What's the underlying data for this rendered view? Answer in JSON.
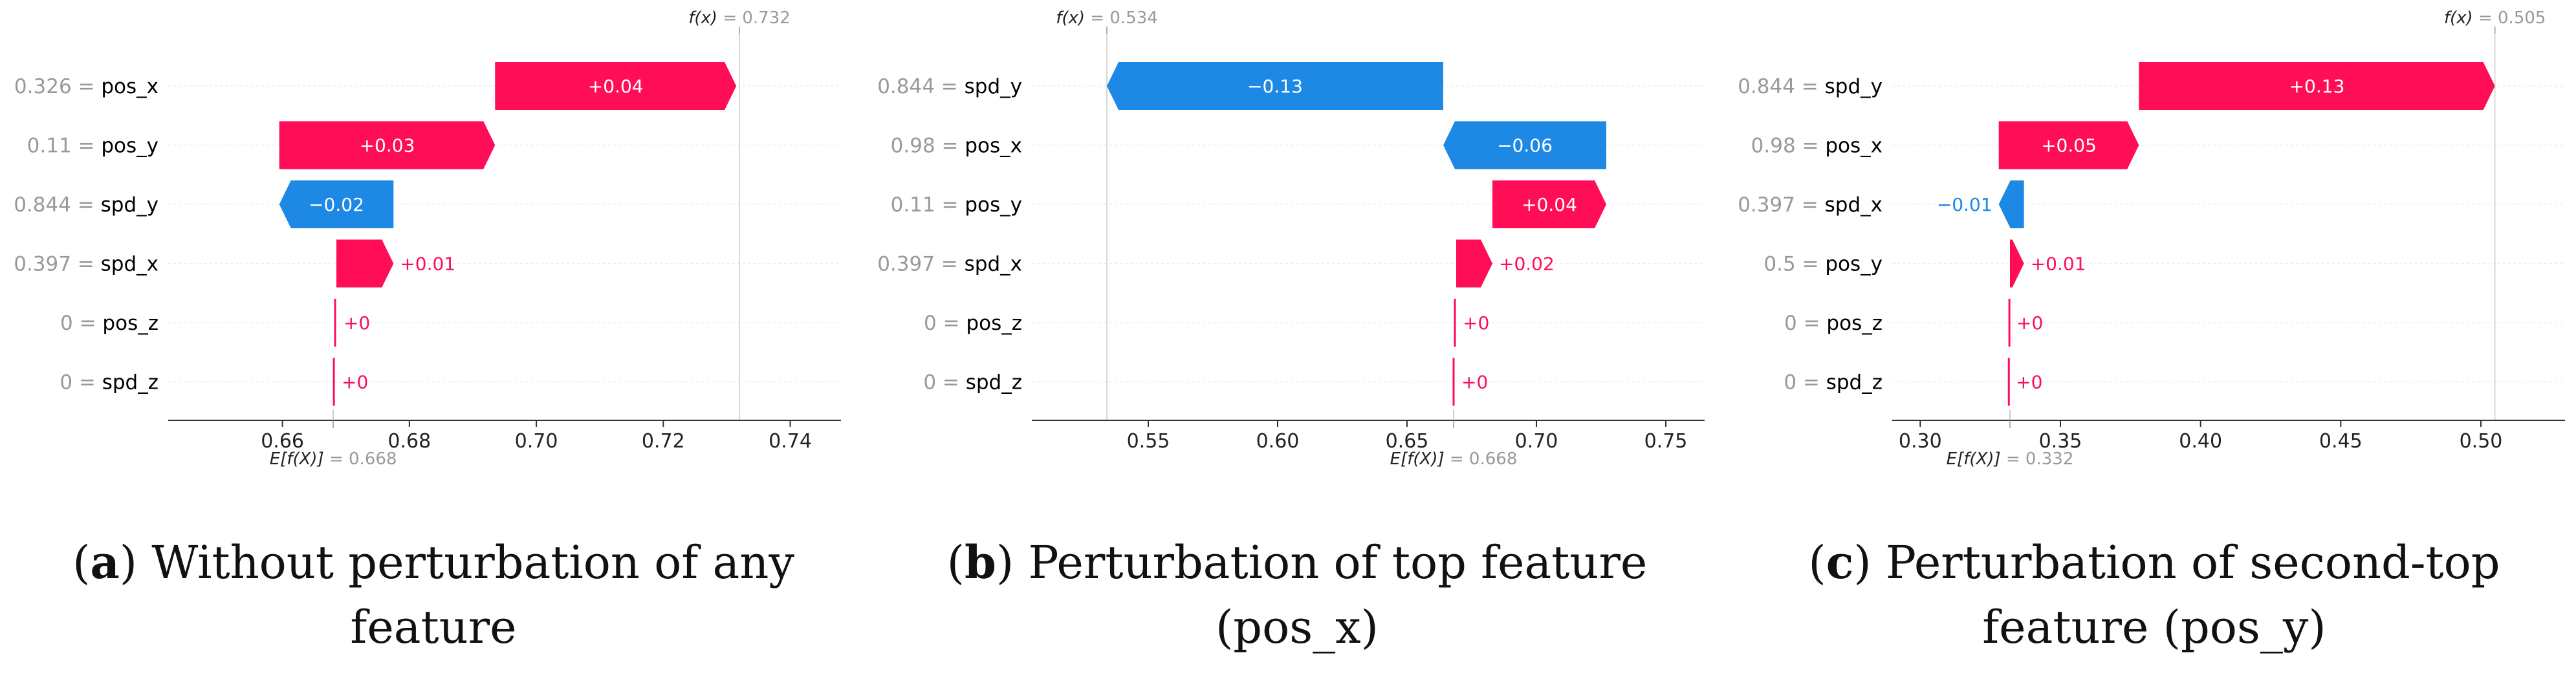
{
  "colors": {
    "positive": "#ff0d57",
    "negative": "#1e88e5",
    "feature_value": "#999999",
    "feature_name": "#000000",
    "axis": "#333333",
    "grid": "#dddddd"
  },
  "chart_data": [
    {
      "type": "waterfall",
      "fx_label": "f(x)",
      "fx_value": "= 0.732",
      "efx_label": "E[f(X)]",
      "efx_value": "= 0.668",
      "xlim": [
        0.642,
        0.748
      ],
      "xticks": [
        "0.66",
        "0.68",
        "0.70",
        "0.72",
        "0.74"
      ],
      "base": 0.668,
      "final": 0.732,
      "features": [
        {
          "value": "0.326",
          "name": "pos_x",
          "start": 0.6935,
          "end": 0.7315,
          "label": "+0.04"
        },
        {
          "value": "0.11",
          "name": "pos_y",
          "start": 0.6595,
          "end": 0.6935,
          "label": "+0.03"
        },
        {
          "value": "0.844",
          "name": "spd_y",
          "start": 0.6775,
          "end": 0.6595,
          "label": "−0.02"
        },
        {
          "value": "0.397",
          "name": "spd_x",
          "start": 0.6685,
          "end": 0.6775,
          "label": "+0.01"
        },
        {
          "value": "0",
          "name": "pos_z",
          "start": 0.6683,
          "end": 0.6686,
          "label": "+0"
        },
        {
          "value": "0",
          "name": "spd_z",
          "start": 0.6681,
          "end": 0.6683,
          "label": "+0"
        }
      ]
    },
    {
      "type": "waterfall",
      "fx_label": "f(x)",
      "fx_value": "= 0.534",
      "efx_label": "E[f(X)]",
      "efx_value": "= 0.668",
      "xlim": [
        0.505,
        0.765
      ],
      "xticks": [
        "0.55",
        "0.60",
        "0.65",
        "0.70",
        "0.75"
      ],
      "base": 0.668,
      "final": 0.534,
      "features": [
        {
          "value": "0.844",
          "name": "spd_y",
          "start": 0.664,
          "end": 0.534,
          "label": "−0.13"
        },
        {
          "value": "0.98",
          "name": "pos_x",
          "start": 0.727,
          "end": 0.664,
          "label": "−0.06"
        },
        {
          "value": "0.11",
          "name": "pos_y",
          "start": 0.683,
          "end": 0.727,
          "label": "+0.04"
        },
        {
          "value": "0.397",
          "name": "spd_x",
          "start": 0.669,
          "end": 0.683,
          "label": "+0.02"
        },
        {
          "value": "0",
          "name": "pos_z",
          "start": 0.6685,
          "end": 0.669,
          "label": "+0"
        },
        {
          "value": "0",
          "name": "spd_z",
          "start": 0.668,
          "end": 0.6685,
          "label": "+0"
        }
      ]
    },
    {
      "type": "waterfall",
      "fx_label": "f(x)",
      "fx_value": "= 0.505",
      "efx_label": "E[f(X)]",
      "efx_value": "= 0.332",
      "xlim": [
        0.29,
        0.53
      ],
      "xticks": [
        "0.30",
        "0.35",
        "0.40",
        "0.45",
        "0.50"
      ],
      "base": 0.332,
      "final": 0.505,
      "features": [
        {
          "value": "0.844",
          "name": "spd_y",
          "start": 0.378,
          "end": 0.505,
          "label": "+0.13"
        },
        {
          "value": "0.98",
          "name": "pos_x",
          "start": 0.328,
          "end": 0.378,
          "label": "+0.05"
        },
        {
          "value": "0.397",
          "name": "spd_x",
          "start": 0.337,
          "end": 0.328,
          "label": "−0.01"
        },
        {
          "value": "0.5",
          "name": "pos_y",
          "start": 0.332,
          "end": 0.337,
          "label": "+0.01"
        },
        {
          "value": "0",
          "name": "pos_z",
          "start": 0.3318,
          "end": 0.332,
          "label": "+0"
        },
        {
          "value": "0",
          "name": "spd_z",
          "start": 0.3316,
          "end": 0.3318,
          "label": "+0"
        }
      ]
    }
  ],
  "captions": [
    {
      "letter": "a",
      "text": " Without perturbation of any feature"
    },
    {
      "letter": "b",
      "text": " Perturbation of top feature (pos_x)"
    },
    {
      "letter": "c",
      "text": " Perturbation of second-top feature (pos_y)"
    }
  ]
}
